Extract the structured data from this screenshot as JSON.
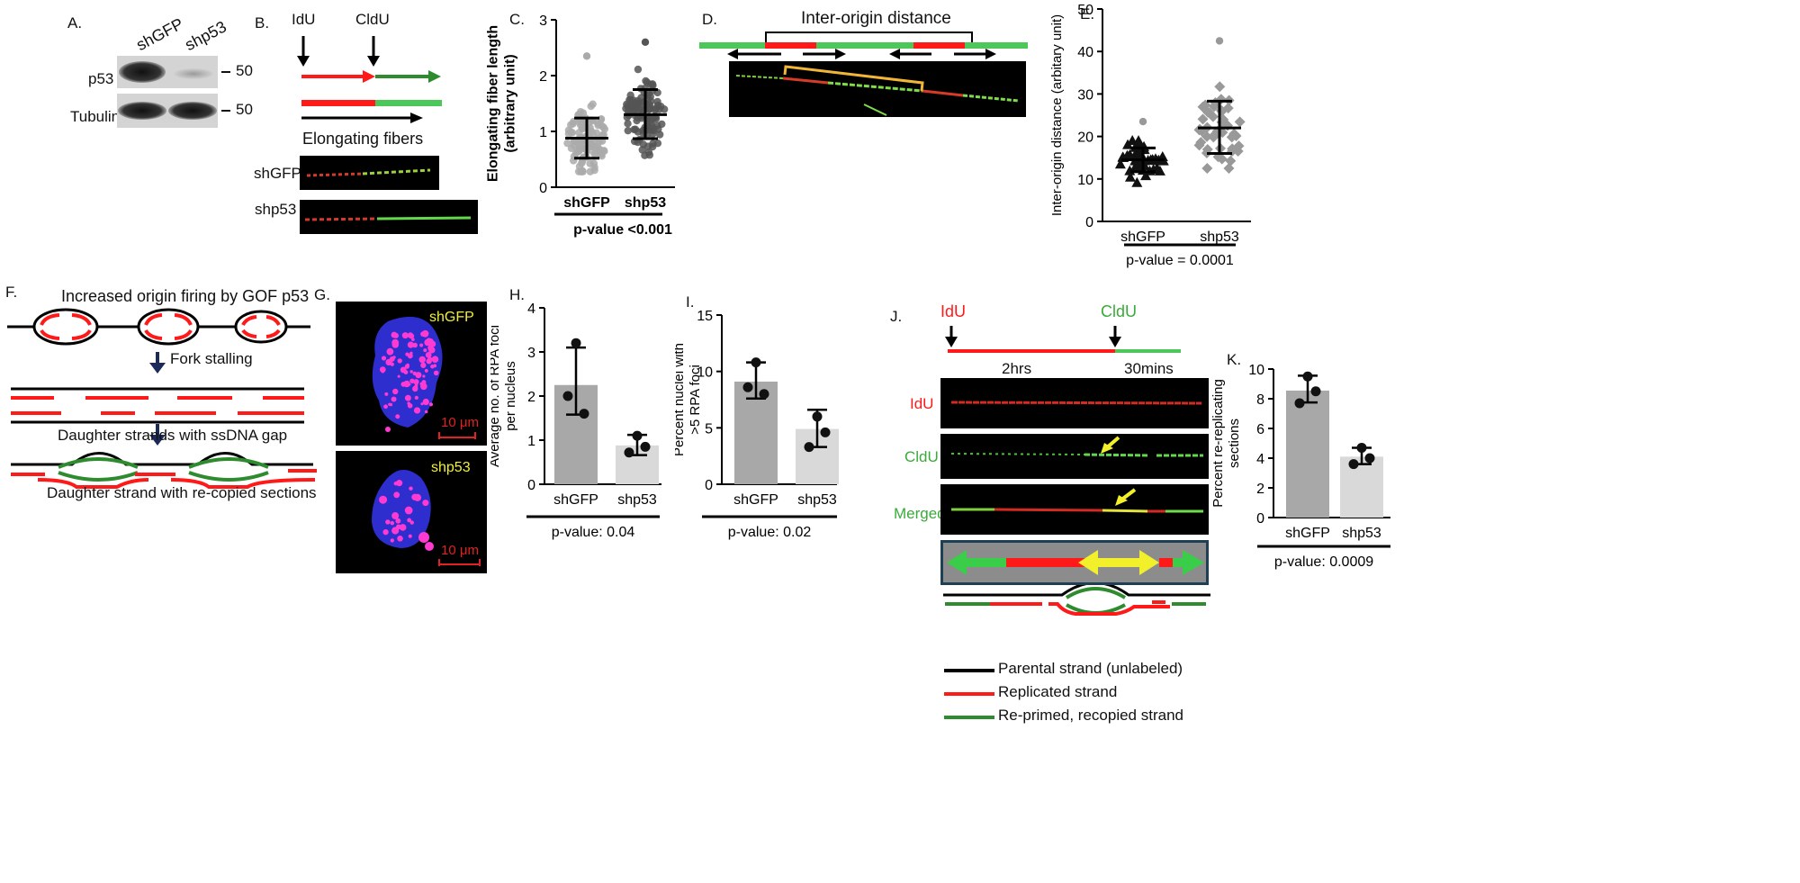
{
  "panelA": {
    "letter": "A.",
    "lanes": [
      "shGFP",
      "shp53"
    ],
    "rows": [
      "p53",
      "Tubulin"
    ],
    "marker": "50"
  },
  "panelB": {
    "letter": "B.",
    "label1": "IdU",
    "label2": "CldU",
    "caption": "Elongating fibers",
    "samples": [
      "shGFP",
      "shp53"
    ],
    "colors": {
      "idu": "#ff1a1a",
      "cldu": "#2e8b2e",
      "bar_green": "#4cc85a"
    }
  },
  "panelD": {
    "letter": "D.",
    "title": "Inter-origin distance"
  },
  "panelF": {
    "letter": "F.",
    "title": "Increased origin firing by GOF p53",
    "step1": "Fork stalling",
    "caption1": "Daughter strands with ssDNA gap",
    "caption2": "Daughter strand with re-copied sections"
  },
  "panelG": {
    "letter": "G.",
    "samples": [
      "shGFP",
      "shp53"
    ],
    "scale": "10 μm"
  },
  "panelJ": {
    "letter": "J.",
    "label1": "IdU",
    "label2": "CldU",
    "time1": "2hrs",
    "time2": "30mins",
    "rows": [
      "IdU",
      "CldU",
      "Merged"
    ],
    "legend": [
      "Parental strand (unlabeled)",
      "Replicated strand",
      "Re-primed, recopied strand"
    ],
    "legend_colors": [
      "#000000",
      "#ff1a1a",
      "#2e8b2e"
    ]
  },
  "chart_data": [
    {
      "id": "C",
      "letter": "C.",
      "type": "scatter",
      "categories": [
        "shGFP",
        "shp53"
      ],
      "ylabel": "Elongating fiber length\n(arbitrary unit)",
      "ylim": [
        0,
        3
      ],
      "yticks": [
        "0",
        "1",
        "2",
        "3"
      ],
      "series": [
        {
          "mean": 0.88,
          "sd_low": 0.52,
          "sd_high": 1.24,
          "min": 0.28,
          "max": 2.35
        },
        {
          "mean": 1.3,
          "sd_low": 0.87,
          "sd_high": 1.75,
          "min": 0.55,
          "max": 2.6
        }
      ],
      "pvalue": "p-value <0.001"
    },
    {
      "id": "E",
      "letter": "E.",
      "type": "scatter",
      "categories": [
        "shGFP",
        "shp53"
      ],
      "ylabel": "Inter-origin distance (arbitary unit)",
      "ylim": [
        0,
        50
      ],
      "yticks": [
        "0",
        "10",
        "20",
        "30",
        "40",
        "50"
      ],
      "series": [
        {
          "mean": 14.5,
          "sd_low": 11.7,
          "sd_high": 17.3,
          "min": 8.5,
          "max": 23.5
        },
        {
          "mean": 22.0,
          "sd_low": 16.0,
          "sd_high": 28.3,
          "min": 12.5,
          "max": 42.5
        }
      ],
      "pvalue": "p-value = 0.0001"
    },
    {
      "id": "H",
      "letter": "H.",
      "type": "bar",
      "categories": [
        "shGFP",
        "shp53"
      ],
      "values": [
        2.25,
        0.88
      ],
      "err_high": [
        3.1,
        1.12
      ],
      "err_low": [
        1.58,
        0.66
      ],
      "points": [
        [
          3.2,
          2.0,
          1.6
        ],
        [
          1.1,
          0.72,
          0.85
        ]
      ],
      "ylabel": "Average no. of RPA foci\nper nucleus",
      "ylim": [
        0,
        4
      ],
      "yticks": [
        "0",
        "1",
        "2",
        "3",
        "4"
      ],
      "pvalue": "p-value: 0.04",
      "colors": [
        "#a8a8a8",
        "#d9d9d9"
      ]
    },
    {
      "id": "I",
      "letter": "I.",
      "type": "bar",
      "categories": [
        "shGFP",
        "shp53"
      ],
      "values": [
        9.1,
        4.9
      ],
      "err_high": [
        10.8,
        6.6
      ],
      "err_low": [
        7.6,
        3.3
      ],
      "points": [
        [
          10.8,
          8.6,
          8.0
        ],
        [
          6.0,
          3.3,
          4.6
        ]
      ],
      "ylabel": "Percent nuclei with\n>5 RPA foci",
      "ylim": [
        0,
        15
      ],
      "yticks": [
        "0",
        "5",
        "10",
        "15"
      ],
      "pvalue": "p-value: 0.02",
      "colors": [
        "#a8a8a8",
        "#d9d9d9"
      ]
    },
    {
      "id": "K",
      "letter": "K.",
      "type": "bar",
      "categories": [
        "shGFP",
        "shp53"
      ],
      "values": [
        8.55,
        4.1
      ],
      "err_high": [
        9.55,
        4.7
      ],
      "err_low": [
        7.75,
        3.6
      ],
      "points": [
        [
          9.5,
          7.7,
          8.5
        ],
        [
          4.7,
          3.6,
          4.0
        ]
      ],
      "ylabel": "Percent re-replicating\nsections",
      "ylim": [
        0,
        10
      ],
      "yticks": [
        "0",
        "2",
        "4",
        "6",
        "8",
        "10"
      ],
      "pvalue": "p-value: 0.0009",
      "colors": [
        "#a8a8a8",
        "#d9d9d9"
      ]
    }
  ]
}
